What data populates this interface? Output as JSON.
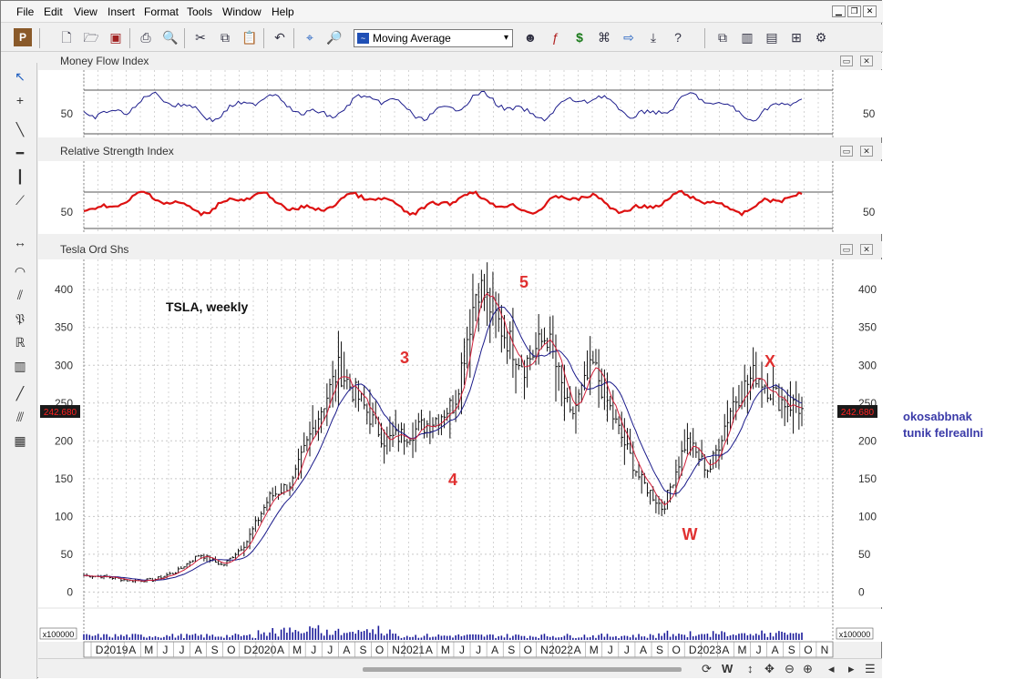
{
  "menu": [
    "File",
    "Edit",
    "View",
    "Insert",
    "Format",
    "Tools",
    "Window",
    "Help"
  ],
  "toolbar": {
    "indicator_dropdown": "Moving Average"
  },
  "panes": {
    "mfi": {
      "title": "Money Flow Index",
      "ticks": [
        "50"
      ]
    },
    "rsi": {
      "title": "Relative Strength Index",
      "ticks": [
        "50"
      ]
    },
    "price": {
      "title": "Tesla Ord Shs",
      "ticks": [
        "400",
        "350",
        "300",
        "250",
        "200",
        "150",
        "100",
        "50",
        "0"
      ],
      "last_price": "242.680"
    },
    "volume": {
      "multiplier": "x100000"
    }
  },
  "annotations": {
    "chart_note": "TSLA, weekly",
    "waves": [
      {
        "label": "3",
        "color": "#e03030"
      },
      {
        "label": "4",
        "color": "#e03030"
      },
      {
        "label": "5",
        "color": "#e03030"
      },
      {
        "label": "W",
        "color": "#e03030"
      },
      {
        "label": "X",
        "color": "#e03030"
      }
    ],
    "side_note_1": "okosabbnak",
    "side_note_2": "tunik felreallni"
  },
  "time_axis": [
    "D",
    "2019",
    "A",
    "M",
    "J",
    "J",
    "A",
    "S",
    "O",
    "D",
    "2020",
    "A",
    "M",
    "J",
    "J",
    "A",
    "S",
    "O",
    "N",
    "2021",
    "A",
    "M",
    "J",
    "J",
    "A",
    "S",
    "O",
    "N",
    "2022",
    "A",
    "M",
    "J",
    "J",
    "A",
    "S",
    "O",
    "D",
    "2023",
    "A",
    "M",
    "J",
    "A",
    "S",
    "O",
    "N"
  ],
  "statusbar": {
    "period": "W"
  },
  "colors": {
    "price_bars": "#111111",
    "ma_fast": "#d0203a",
    "ma_slow": "#1a1a8a",
    "rsi_line": "#dd1111",
    "mfi_line": "#1c1c8c",
    "price_tag": "#cc0000",
    "wave_labels": "#e03030"
  },
  "chart_data": {
    "type": "line",
    "title": "TSLA, weekly",
    "x": [
      "2018-12",
      "2019-03",
      "2019-06",
      "2019-09",
      "2019-12",
      "2020-02",
      "2020-04",
      "2020-06",
      "2020-08",
      "2020-10",
      "2020-12",
      "2021-01",
      "2021-02",
      "2021-03",
      "2021-05",
      "2021-07",
      "2021-09",
      "2021-11",
      "2022-01",
      "2022-03",
      "2022-04",
      "2022-06",
      "2022-08",
      "2022-10",
      "2022-12",
      "2023-01",
      "2023-02",
      "2023-04",
      "2023-06",
      "2023-07",
      "2023-09",
      "2023-10"
    ],
    "series": [
      {
        "name": "Tesla Ord Shs",
        "values": [
          22,
          20,
          15,
          16,
          27,
          50,
          35,
          65,
          125,
          145,
          225,
          295,
          250,
          200,
          210,
          225,
          250,
          410,
          350,
          300,
          340,
          230,
          300,
          220,
          150,
          110,
          200,
          160,
          250,
          290,
          255,
          242.68
        ]
      }
    ],
    "ylim": [
      -20,
      440
    ],
    "last_value": 242.68
  }
}
